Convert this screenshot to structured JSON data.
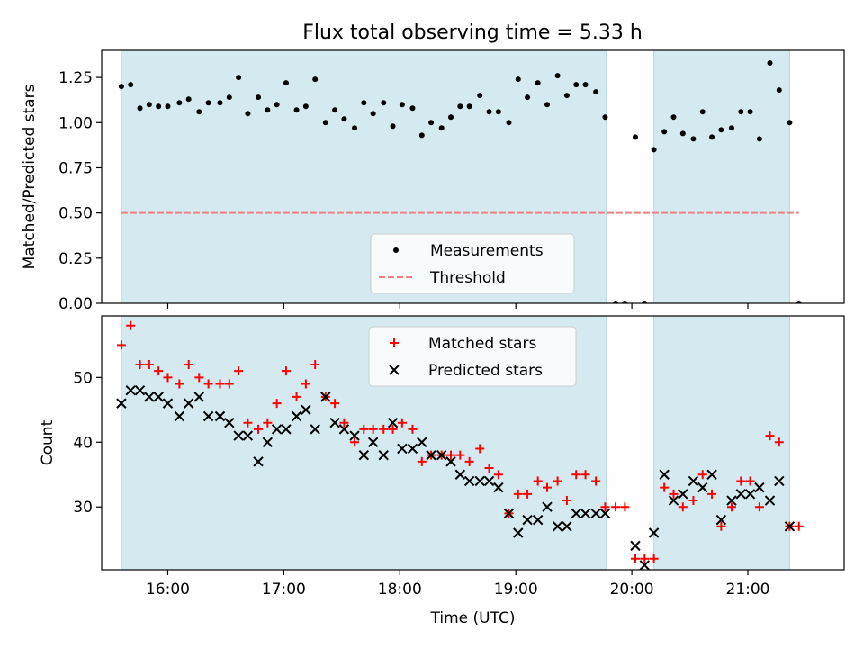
{
  "figure": {
    "title": "Flux total observing time = 5.33 h"
  },
  "chart_data": [
    {
      "type": "scatter",
      "panel": "top",
      "title": "Flux total observing time = 5.33 h",
      "xlabel": "",
      "ylabel": "Matched/Predicted stars",
      "xlim_hours": [
        15.43,
        21.83
      ],
      "ylim": [
        0,
        1.4
      ],
      "yticks": [
        0.0,
        0.25,
        0.5,
        0.75,
        1.0,
        1.25
      ],
      "ytick_labels": [
        "0.00",
        "0.25",
        "0.50",
        "0.75",
        "1.00",
        "1.25"
      ],
      "xticks": [
        16,
        17,
        18,
        19,
        20,
        21
      ],
      "xtick_labels": [
        "16:00",
        "17:00",
        "18:00",
        "19:00",
        "20:00",
        "21:00"
      ],
      "shaded_spans_hours": [
        [
          15.6,
          19.78
        ],
        [
          20.19,
          21.36
        ]
      ],
      "legend": {
        "placement": "lower-center"
      },
      "series": [
        {
          "name": "Measurements",
          "marker": "dot",
          "color": "#000000",
          "x": [
            15.6,
            15.68,
            15.76,
            15.84,
            15.92,
            16.0,
            16.1,
            16.18,
            16.27,
            16.35,
            16.45,
            16.53,
            16.61,
            16.69,
            16.78,
            16.86,
            16.94,
            17.02,
            17.11,
            17.19,
            17.27,
            17.36,
            17.44,
            17.52,
            17.61,
            17.69,
            17.77,
            17.86,
            17.94,
            18.02,
            18.11,
            18.19,
            18.27,
            18.36,
            18.44,
            18.52,
            18.6,
            18.69,
            18.77,
            18.85,
            18.94,
            19.02,
            19.1,
            19.19,
            19.27,
            19.36,
            19.44,
            19.52,
            19.6,
            19.69,
            19.77,
            19.86,
            19.94,
            20.03,
            20.11,
            20.19,
            20.28,
            20.36,
            20.44,
            20.53,
            20.61,
            20.69,
            20.77,
            20.86,
            20.94,
            21.02,
            21.1,
            21.19,
            21.27,
            21.36,
            21.44
          ],
          "y": [
            1.2,
            1.21,
            1.08,
            1.1,
            1.09,
            1.09,
            1.11,
            1.13,
            1.06,
            1.11,
            1.11,
            1.14,
            1.25,
            1.05,
            1.14,
            1.07,
            1.1,
            1.22,
            1.07,
            1.09,
            1.24,
            1.0,
            1.07,
            1.02,
            0.97,
            1.11,
            1.05,
            1.11,
            0.98,
            1.1,
            1.08,
            0.93,
            1.0,
            0.97,
            1.03,
            1.09,
            1.09,
            1.15,
            1.06,
            1.06,
            1.0,
            1.24,
            1.14,
            1.22,
            1.1,
            1.26,
            1.15,
            1.21,
            1.21,
            1.17,
            1.03,
            0.0,
            0.0,
            0.92,
            0.0,
            0.85,
            0.95,
            1.03,
            0.94,
            0.91,
            1.06,
            0.92,
            0.96,
            0.97,
            1.06,
            1.06,
            0.91,
            1.33,
            1.18,
            1.0,
            0.0
          ]
        },
        {
          "name": "Threshold",
          "style": "dashed",
          "color": "#f08080",
          "x": [
            15.6,
            21.44
          ],
          "y": [
            0.5,
            0.5
          ]
        }
      ]
    },
    {
      "type": "scatter",
      "panel": "bottom",
      "xlabel": "Time (UTC)",
      "ylabel": "Count",
      "xlim_hours": [
        15.43,
        21.83
      ],
      "ylim": [
        20.3,
        59.5
      ],
      "yticks": [
        30,
        40,
        50
      ],
      "ytick_labels": [
        "30",
        "40",
        "50"
      ],
      "xticks": [
        16,
        17,
        18,
        19,
        20,
        21
      ],
      "xtick_labels": [
        "16:00",
        "17:00",
        "18:00",
        "19:00",
        "20:00",
        "21:00"
      ],
      "shaded_spans_hours": [
        [
          15.6,
          19.78
        ],
        [
          20.19,
          21.36
        ]
      ],
      "legend": {
        "placement": "top-center"
      },
      "series": [
        {
          "name": "Matched stars",
          "marker": "plus",
          "color": "#ff0000",
          "x": [
            15.6,
            15.68,
            15.76,
            15.84,
            15.92,
            16.0,
            16.1,
            16.18,
            16.27,
            16.35,
            16.45,
            16.53,
            16.61,
            16.69,
            16.78,
            16.86,
            16.94,
            17.02,
            17.11,
            17.19,
            17.27,
            17.36,
            17.44,
            17.52,
            17.61,
            17.69,
            17.77,
            17.86,
            17.94,
            18.02,
            18.11,
            18.19,
            18.27,
            18.36,
            18.44,
            18.52,
            18.6,
            18.69,
            18.77,
            18.85,
            18.94,
            19.02,
            19.1,
            19.19,
            19.27,
            19.36,
            19.44,
            19.52,
            19.6,
            19.69,
            19.77,
            19.86,
            19.94,
            20.03,
            20.11,
            20.19,
            20.28,
            20.36,
            20.44,
            20.53,
            20.61,
            20.69,
            20.77,
            20.86,
            20.94,
            21.02,
            21.1,
            21.19,
            21.27,
            21.36,
            21.44
          ],
          "y": [
            55,
            58,
            52,
            52,
            51,
            50,
            49,
            52,
            50,
            49,
            49,
            49,
            51,
            43,
            42,
            43,
            46,
            51,
            47,
            49,
            52,
            47,
            46,
            43,
            40,
            42,
            42,
            42,
            42,
            43,
            42,
            37,
            38,
            38,
            38,
            38,
            37,
            39,
            36,
            35,
            29,
            32,
            32,
            34,
            33,
            34,
            31,
            35,
            35,
            34,
            30,
            30,
            30,
            22,
            22,
            22,
            33,
            32,
            30,
            31,
            35,
            32,
            27,
            30,
            34,
            34,
            30,
            41,
            40,
            27,
            27
          ]
        },
        {
          "name": "Predicted stars",
          "marker": "x",
          "color": "#000000",
          "x": [
            15.6,
            15.68,
            15.76,
            15.84,
            15.92,
            16.0,
            16.1,
            16.18,
            16.27,
            16.35,
            16.45,
            16.53,
            16.61,
            16.69,
            16.78,
            16.86,
            16.94,
            17.02,
            17.11,
            17.19,
            17.27,
            17.36,
            17.44,
            17.52,
            17.61,
            17.69,
            17.77,
            17.86,
            17.94,
            18.02,
            18.11,
            18.19,
            18.27,
            18.36,
            18.44,
            18.52,
            18.6,
            18.69,
            18.77,
            18.85,
            18.94,
            19.02,
            19.1,
            19.19,
            19.27,
            19.36,
            19.44,
            19.52,
            19.6,
            19.69,
            19.77,
            20.03,
            20.11,
            20.19,
            20.28,
            20.36,
            20.44,
            20.53,
            20.61,
            20.69,
            20.77,
            20.86,
            20.94,
            21.02,
            21.1,
            21.19,
            21.27,
            21.36
          ],
          "y": [
            46,
            48,
            48,
            47,
            47,
            46,
            44,
            46,
            47,
            44,
            44,
            43,
            41,
            41,
            37,
            40,
            42,
            42,
            44,
            45,
            42,
            47,
            43,
            42,
            41,
            38,
            40,
            38,
            43,
            39,
            39,
            40,
            38,
            38,
            37,
            35,
            34,
            34,
            34,
            33,
            29,
            26,
            28,
            28,
            30,
            27,
            27,
            29,
            29,
            29,
            29,
            24,
            21,
            26,
            35,
            31,
            32,
            34,
            33,
            35,
            28,
            31,
            32,
            32,
            33,
            31,
            34,
            27
          ]
        }
      ]
    }
  ]
}
